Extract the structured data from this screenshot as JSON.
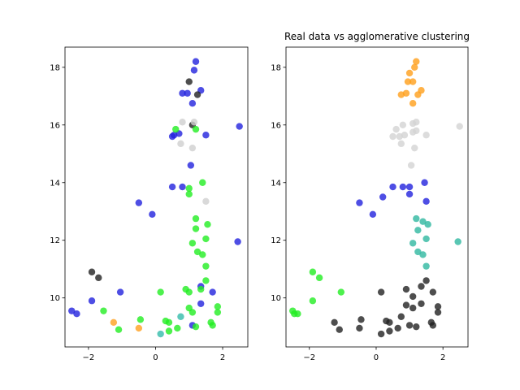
{
  "chart_data": [
    {
      "type": "scatter",
      "title": "",
      "xlabel": "",
      "ylabel": "",
      "xlim": [
        -2.7,
        2.75
      ],
      "ylim": [
        8.3,
        18.7
      ],
      "xticks": [
        -2,
        0,
        2
      ],
      "yticks": [
        10,
        12,
        14,
        16,
        18
      ],
      "grid": false,
      "series": [
        {
          "color": "#2222dd",
          "points": [
            [
              1.2,
              18.2
            ],
            [
              1.15,
              17.9
            ],
            [
              1.35,
              17.2
            ],
            [
              0.8,
              17.1
            ],
            [
              0.95,
              17.1
            ],
            [
              1.1,
              16.75
            ],
            [
              2.5,
              15.95
            ],
            [
              0.7,
              15.7
            ],
            [
              1.5,
              15.65
            ],
            [
              0.5,
              15.6
            ],
            [
              0.55,
              15.65
            ],
            [
              1.05,
              14.6
            ],
            [
              0.8,
              13.85
            ],
            [
              0.5,
              13.85
            ],
            [
              -0.5,
              13.3
            ],
            [
              -0.1,
              12.9
            ],
            [
              2.45,
              11.95
            ],
            [
              1.35,
              10.4
            ],
            [
              -1.05,
              10.2
            ],
            [
              1.7,
              10.2
            ],
            [
              1.35,
              9.8
            ],
            [
              -1.9,
              9.9
            ],
            [
              -2.5,
              9.55
            ],
            [
              -2.35,
              9.45
            ],
            [
              1.1,
              9.05
            ]
          ]
        },
        {
          "color": "#222222",
          "points": [
            [
              1.0,
              17.5
            ],
            [
              1.25,
              17.05
            ],
            [
              1.1,
              16.0
            ],
            [
              -1.9,
              10.9
            ],
            [
              -1.7,
              10.7
            ]
          ]
        },
        {
          "color": "#22ee22",
          "points": [
            [
              0.6,
              15.85
            ],
            [
              1.2,
              15.85
            ],
            [
              1.4,
              14.0
            ],
            [
              1.0,
              13.8
            ],
            [
              1.0,
              13.6
            ],
            [
              1.2,
              12.75
            ],
            [
              1.55,
              12.55
            ],
            [
              1.2,
              12.4
            ],
            [
              1.5,
              12.05
            ],
            [
              1.1,
              11.9
            ],
            [
              1.25,
              11.6
            ],
            [
              1.4,
              11.5
            ],
            [
              1.5,
              11.1
            ],
            [
              1.5,
              10.6
            ],
            [
              1.0,
              10.2
            ],
            [
              0.9,
              10.3
            ],
            [
              1.35,
              10.3
            ],
            [
              1.85,
              9.7
            ],
            [
              1.85,
              9.5
            ],
            [
              1.0,
              9.65
            ],
            [
              0.15,
              10.2
            ],
            [
              -0.45,
              9.25
            ],
            [
              0.3,
              9.2
            ],
            [
              0.4,
              9.15
            ],
            [
              1.2,
              9.0
            ],
            [
              1.65,
              9.15
            ],
            [
              1.7,
              9.05
            ],
            [
              -1.1,
              8.9
            ],
            [
              0.4,
              8.85
            ],
            [
              0.65,
              8.95
            ],
            [
              1.1,
              9.5
            ],
            [
              -1.55,
              9.55
            ]
          ]
        },
        {
          "color": "#ffa01f",
          "points": [
            [
              -1.25,
              9.15
            ],
            [
              -0.5,
              8.95
            ]
          ]
        },
        {
          "color": "#33bbaa",
          "points": [
            [
              0.15,
              8.75
            ],
            [
              0.75,
              9.35
            ]
          ]
        },
        {
          "color": "#cfcfcf",
          "points": [
            [
              0.8,
              16.1
            ],
            [
              1.15,
              16.1
            ],
            [
              0.75,
              15.35
            ],
            [
              1.1,
              15.2
            ],
            [
              1.5,
              13.35
            ]
          ]
        }
      ]
    },
    {
      "type": "scatter",
      "title": "Real data vs agglomerative clustering",
      "xlabel": "",
      "ylabel": "",
      "xlim": [
        -2.7,
        2.75
      ],
      "ylim": [
        8.3,
        18.7
      ],
      "xticks": [
        -2,
        0,
        2
      ],
      "yticks": [
        10,
        12,
        14,
        16,
        18
      ],
      "grid": false,
      "series": [
        {
          "color": "#ff9f1a",
          "points": [
            [
              1.2,
              18.2
            ],
            [
              1.15,
              18.0
            ],
            [
              1.0,
              17.8
            ],
            [
              1.1,
              17.5
            ],
            [
              0.95,
              17.5
            ],
            [
              1.35,
              17.2
            ],
            [
              1.25,
              17.05
            ],
            [
              0.75,
              17.05
            ],
            [
              0.9,
              17.1
            ],
            [
              1.1,
              16.75
            ]
          ]
        },
        {
          "color": "#d3d3d3",
          "points": [
            [
              1.1,
              16.05
            ],
            [
              1.2,
              16.1
            ],
            [
              0.8,
              16.0
            ],
            [
              0.6,
              15.85
            ],
            [
              1.2,
              15.8
            ],
            [
              0.5,
              15.6
            ],
            [
              0.7,
              15.6
            ],
            [
              0.85,
              15.65
            ],
            [
              1.1,
              15.75
            ],
            [
              1.5,
              15.65
            ],
            [
              2.5,
              15.95
            ],
            [
              0.75,
              15.35
            ],
            [
              1.15,
              15.2
            ],
            [
              1.05,
              14.6
            ]
          ]
        },
        {
          "color": "#2222dd",
          "points": [
            [
              1.45,
              14.0
            ],
            [
              1.0,
              13.85
            ],
            [
              0.8,
              13.85
            ],
            [
              0.5,
              13.85
            ],
            [
              1.0,
              13.6
            ],
            [
              1.5,
              13.35
            ],
            [
              -0.5,
              13.3
            ],
            [
              0.2,
              13.5
            ],
            [
              -0.1,
              12.9
            ]
          ]
        },
        {
          "color": "#2fb8a0",
          "points": [
            [
              1.2,
              12.75
            ],
            [
              1.4,
              12.65
            ],
            [
              1.55,
              12.55
            ],
            [
              1.25,
              12.35
            ],
            [
              1.5,
              12.05
            ],
            [
              2.45,
              11.95
            ],
            [
              1.1,
              11.9
            ],
            [
              1.25,
              11.6
            ],
            [
              1.4,
              11.5
            ],
            [
              1.5,
              11.1
            ]
          ]
        },
        {
          "color": "#222222",
          "points": [
            [
              1.5,
              10.6
            ],
            [
              1.35,
              10.4
            ],
            [
              0.9,
              10.3
            ],
            [
              1.1,
              10.05
            ],
            [
              0.15,
              10.2
            ],
            [
              1.7,
              10.2
            ],
            [
              1.35,
              9.8
            ],
            [
              1.85,
              9.7
            ],
            [
              0.9,
              9.75
            ],
            [
              1.1,
              9.65
            ],
            [
              1.85,
              9.5
            ],
            [
              0.75,
              9.35
            ],
            [
              0.3,
              9.2
            ],
            [
              0.4,
              9.15
            ],
            [
              -0.45,
              9.25
            ],
            [
              -1.25,
              9.15
            ],
            [
              1.65,
              9.15
            ],
            [
              1.2,
              9.0
            ],
            [
              1.0,
              9.05
            ],
            [
              1.7,
              9.05
            ],
            [
              -1.1,
              8.9
            ],
            [
              -0.5,
              8.95
            ],
            [
              0.4,
              8.85
            ],
            [
              0.65,
              8.95
            ],
            [
              0.15,
              8.75
            ]
          ]
        },
        {
          "color": "#22ee22",
          "points": [
            [
              -1.9,
              10.9
            ],
            [
              -1.7,
              10.7
            ],
            [
              -1.05,
              10.2
            ],
            [
              -1.9,
              9.9
            ],
            [
              -2.5,
              9.55
            ],
            [
              -2.45,
              9.45
            ],
            [
              -2.35,
              9.45
            ]
          ]
        }
      ]
    }
  ]
}
